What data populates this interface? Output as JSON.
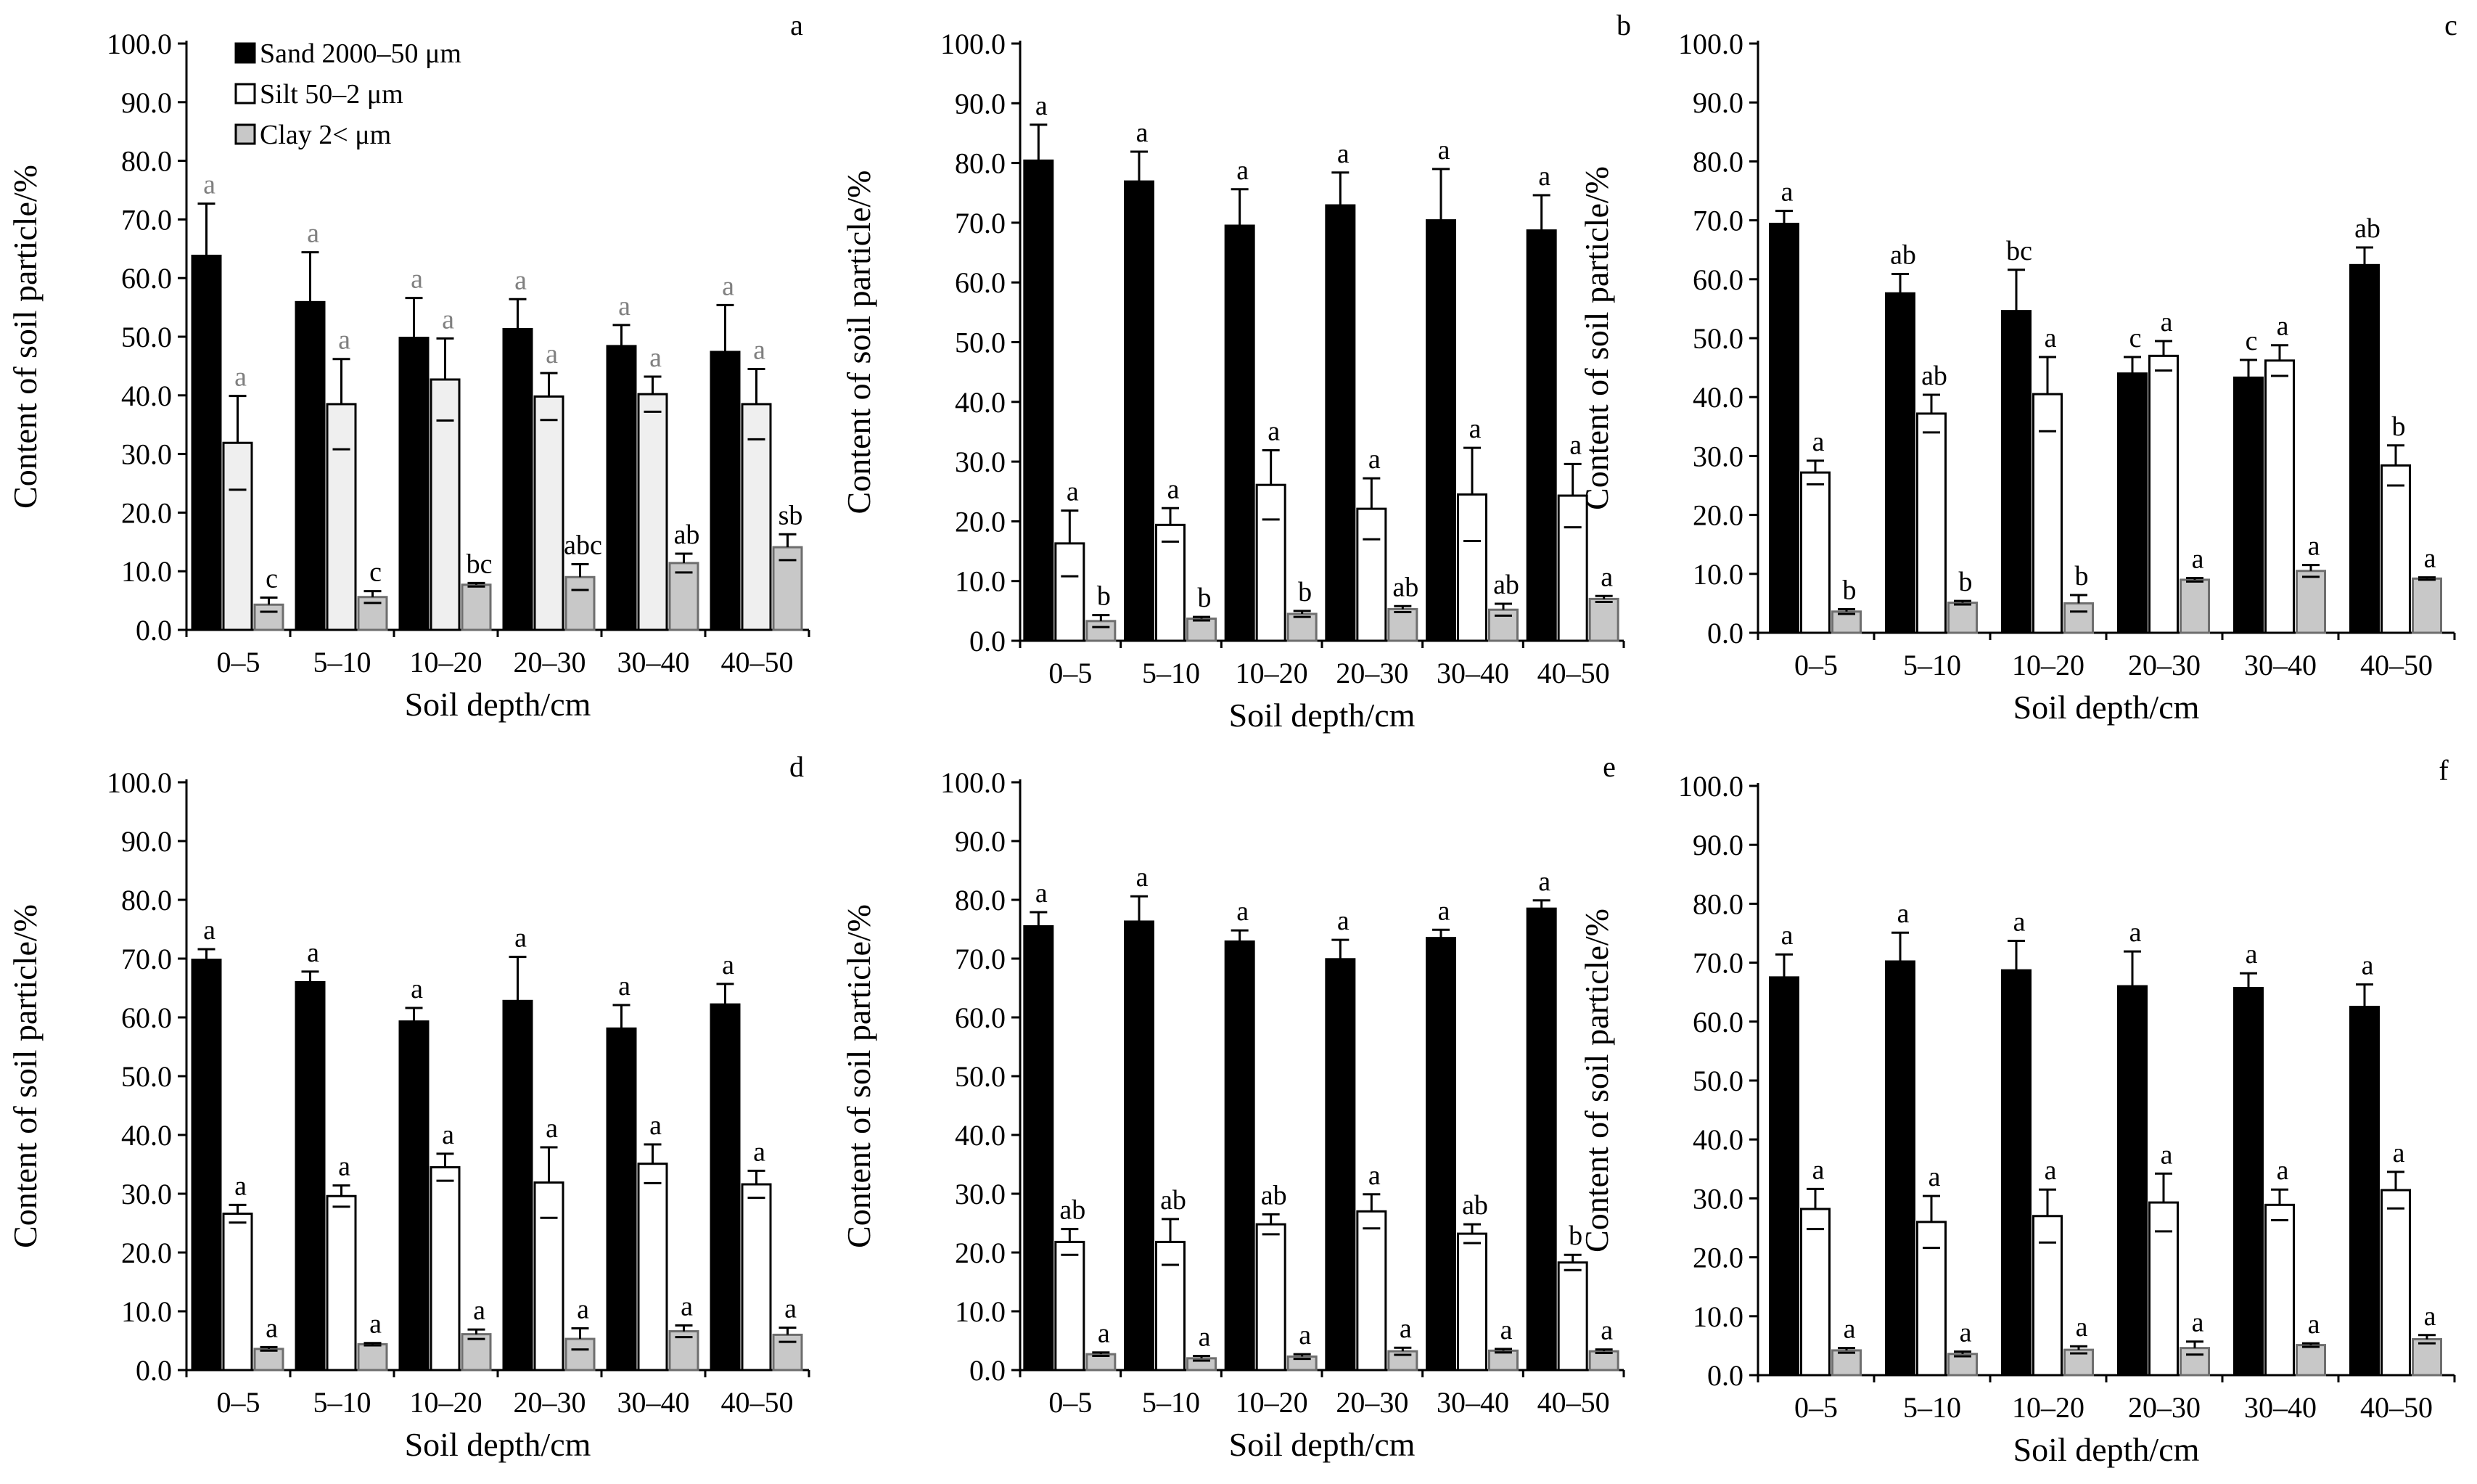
{
  "figure": {
    "legend": [
      {
        "label": "Sand 2000–50 μm",
        "color": "#000000"
      },
      {
        "label": "Silt   50–2 μm",
        "color": "#ffffff"
      },
      {
        "label": "Clay   2< μm",
        "color": "#c8c8c8"
      }
    ]
  },
  "chart_data": [
    {
      "type": "bar",
      "panel": "a",
      "xlabel": "Soil depth/cm",
      "ylabel": "Content of soil particle/%",
      "ylim": [
        0,
        100
      ],
      "yticks": [
        "0.0",
        "10.0",
        "20.0",
        "30.0",
        "40.0",
        "50.0",
        "60.0",
        "70.0",
        "80.0",
        "90.0",
        "100.0"
      ],
      "categories": [
        "0–5",
        "5–10",
        "10–20",
        "20–30",
        "30–40",
        "40–50"
      ],
      "series": [
        {
          "name": "Sand 2000–50 μm",
          "color": "#000000",
          "values": [
            63.8,
            55.9,
            49.8,
            51.3,
            48.4,
            47.4
          ],
          "errors": [
            8.9,
            8.5,
            6.8,
            5.1,
            3.6,
            8.0
          ],
          "labels": [
            "a",
            "a",
            "a",
            "a",
            "a",
            "a"
          ]
        },
        {
          "name": "Silt   50–2 μm",
          "color": "#efefef",
          "values": [
            31.9,
            38.5,
            42.7,
            39.8,
            40.2,
            38.5
          ],
          "errors": [
            8.0,
            7.7,
            7.0,
            4.0,
            3.0,
            6.0
          ],
          "labels": [
            "a",
            "a",
            "a",
            "a",
            "a",
            "a"
          ]
        },
        {
          "name": "Clay   2< μm",
          "color": "#c8c8c8",
          "values": [
            4.3,
            5.6,
            7.7,
            9.0,
            11.4,
            14.1
          ],
          "errors": [
            1.2,
            1.0,
            0.3,
            2.2,
            1.6,
            2.2
          ],
          "labels": [
            "c",
            "c",
            "bc",
            "abc",
            "ab",
            "sb"
          ]
        }
      ]
    },
    {
      "type": "bar",
      "panel": "b",
      "xlabel": "Soil depth/cm",
      "ylabel": "Content of soil particle/%",
      "ylim": [
        0,
        100
      ],
      "yticks": [
        "0.0",
        "10.0",
        "20.0",
        "30.0",
        "40.0",
        "50.0",
        "60.0",
        "70.0",
        "80.0",
        "90.0",
        "100.0"
      ],
      "categories": [
        "0–5",
        "5–10",
        "10–20",
        "20–30",
        "30–40",
        "40–50"
      ],
      "series": [
        {
          "name": "Sand 2000–50 μm",
          "color": "#000000",
          "values": [
            80.4,
            76.9,
            69.5,
            72.9,
            70.4,
            68.7
          ],
          "errors": [
            6.0,
            5.0,
            6.1,
            5.5,
            8.6,
            5.9
          ],
          "labels": [
            "a",
            "a",
            "a",
            "a",
            "a",
            "a"
          ]
        },
        {
          "name": "Silt   50–2 μm",
          "color": "#ffffff",
          "values": [
            16.3,
            19.4,
            26.1,
            22.1,
            24.5,
            24.3
          ],
          "errors": [
            5.5,
            2.8,
            5.8,
            5.1,
            7.8,
            5.3
          ],
          "labels": [
            "a",
            "a",
            "a",
            "a",
            "a",
            "a"
          ]
        },
        {
          "name": "Clay   2< μm",
          "color": "#c8c8c8",
          "values": [
            3.3,
            3.7,
            4.5,
            5.3,
            5.2,
            7.0
          ],
          "errors": [
            1.0,
            0.3,
            0.5,
            0.5,
            1.0,
            0.5
          ],
          "labels": [
            "b",
            "b",
            "b",
            "ab",
            "ab",
            "a"
          ]
        }
      ]
    },
    {
      "type": "bar",
      "panel": "c",
      "xlabel": "Soil depth/cm",
      "ylabel": "Content of soil particle/%",
      "ylim": [
        0,
        100
      ],
      "yticks": [
        "0.0",
        "10.0",
        "20.0",
        "30.0",
        "40.0",
        "50.0",
        "60.0",
        "70.0",
        "80.0",
        "90.0",
        "100.0"
      ],
      "categories": [
        "0–5",
        "5–10",
        "10–20",
        "20–30",
        "30–40",
        "40–50"
      ],
      "series": [
        {
          "name": "Sand 2000–50 μm",
          "color": "#000000",
          "values": [
            69.4,
            57.6,
            54.6,
            44.0,
            43.3,
            62.4
          ],
          "errors": [
            2.2,
            3.3,
            7.0,
            2.8,
            3.0,
            3.0
          ],
          "labels": [
            "a",
            "ab",
            "bc",
            "c",
            "c",
            "ab"
          ]
        },
        {
          "name": "Silt   50–2 μm",
          "color": "#ffffff",
          "values": [
            27.2,
            37.2,
            40.5,
            47.0,
            46.2,
            28.4
          ],
          "errors": [
            2.0,
            3.2,
            6.3,
            2.5,
            2.6,
            3.4
          ],
          "labels": [
            "a",
            "ab",
            "a",
            "a",
            "a",
            "b"
          ]
        },
        {
          "name": "Clay   2< μm",
          "color": "#c8c8c8",
          "values": [
            3.6,
            5.1,
            5.0,
            9.0,
            10.5,
            9.2
          ],
          "errors": [
            0.4,
            0.3,
            1.4,
            0.3,
            1.0,
            0.2
          ],
          "labels": [
            "b",
            "b",
            "b",
            "a",
            "a",
            "a"
          ]
        }
      ]
    },
    {
      "type": "bar",
      "panel": "d",
      "xlabel": "Soil depth/cm",
      "ylabel": "Content of soil particle/%",
      "ylim": [
        0,
        100
      ],
      "yticks": [
        "0.0",
        "10.0",
        "20.0",
        "30.0",
        "40.0",
        "50.0",
        "60.0",
        "70.0",
        "80.0",
        "90.0",
        "100.0"
      ],
      "categories": [
        "0–5",
        "5–10",
        "10–20",
        "20–30",
        "30–40",
        "40–50"
      ],
      "series": [
        {
          "name": "Sand 2000–50 μm",
          "color": "#000000",
          "values": [
            69.8,
            66.0,
            59.3,
            62.8,
            58.1,
            62.2
          ],
          "errors": [
            1.8,
            1.8,
            2.3,
            7.5,
            4.0,
            3.5
          ],
          "labels": [
            "a",
            "a",
            "a",
            "a",
            "a",
            "a"
          ]
        },
        {
          "name": "Silt   50–2 μm",
          "color": "#ffffff",
          "values": [
            26.6,
            29.6,
            34.5,
            31.9,
            35.1,
            31.6
          ],
          "errors": [
            1.5,
            1.8,
            2.3,
            6.0,
            3.3,
            2.3
          ],
          "labels": [
            "a",
            "a",
            "a",
            "a",
            "a",
            "a"
          ]
        },
        {
          "name": "Clay   2< μm",
          "color": "#c8c8c8",
          "values": [
            3.6,
            4.4,
            6.1,
            5.3,
            6.6,
            6.0
          ],
          "errors": [
            0.3,
            0.2,
            0.8,
            1.8,
            1.0,
            1.2
          ],
          "labels": [
            "a",
            "a",
            "a",
            "a",
            "a",
            "a"
          ]
        }
      ]
    },
    {
      "type": "bar",
      "panel": "e",
      "xlabel": "Soil depth/cm",
      "ylabel": "Content of soil particle/%",
      "ylim": [
        0,
        100
      ],
      "yticks": [
        "0.0",
        "10.0",
        "20.0",
        "30.0",
        "40.0",
        "50.0",
        "60.0",
        "70.0",
        "80.0",
        "90.0",
        "100.0"
      ],
      "categories": [
        "0–5",
        "5–10",
        "10–20",
        "20–30",
        "30–40",
        "40–50"
      ],
      "series": [
        {
          "name": "Sand 2000–50 μm",
          "color": "#000000",
          "values": [
            75.5,
            76.3,
            72.9,
            69.9,
            73.5,
            78.5
          ],
          "errors": [
            2.4,
            4.3,
            1.9,
            3.3,
            1.4,
            1.4
          ],
          "labels": [
            "a",
            "a",
            "a",
            "a",
            "a",
            "a"
          ]
        },
        {
          "name": "Silt   50–2 μm",
          "color": "#ffffff",
          "values": [
            21.8,
            21.8,
            24.8,
            27.0,
            23.2,
            18.3
          ],
          "errors": [
            2.2,
            3.9,
            1.7,
            2.9,
            1.6,
            1.3
          ],
          "labels": [
            "ab",
            "ab",
            "ab",
            "a",
            "ab",
            "b"
          ]
        },
        {
          "name": "Clay   2< μm",
          "color": "#c8c8c8",
          "values": [
            2.7,
            2.0,
            2.3,
            3.2,
            3.3,
            3.2
          ],
          "errors": [
            0.3,
            0.4,
            0.4,
            0.6,
            0.3,
            0.3
          ],
          "labels": [
            "a",
            "a",
            "a",
            "a",
            "a",
            "a"
          ]
        }
      ]
    },
    {
      "type": "bar",
      "panel": "f",
      "xlabel": "Soil depth/cm",
      "ylabel": "Content of soil particle/%",
      "ylim": [
        0,
        100
      ],
      "yticks": [
        "0.0",
        "10.0",
        "20.0",
        "30.0",
        "40.0",
        "50.0",
        "60.0",
        "70.0",
        "80.0",
        "90.0",
        "100.0"
      ],
      "categories": [
        "0–5",
        "5–10",
        "10–20",
        "20–30",
        "30–40",
        "40–50"
      ],
      "series": [
        {
          "name": "Sand 2000–50 μm",
          "color": "#000000",
          "values": [
            67.5,
            70.2,
            68.7,
            66.0,
            65.7,
            62.5
          ],
          "errors": [
            3.9,
            4.9,
            5.0,
            5.9,
            2.5,
            3.8
          ],
          "labels": [
            "a",
            "a",
            "a",
            "a",
            "a",
            "a"
          ]
        },
        {
          "name": "Silt   50–2 μm",
          "color": "#ffffff",
          "values": [
            28.2,
            26.0,
            27.0,
            29.3,
            28.9,
            31.4
          ],
          "errors": [
            3.4,
            4.4,
            4.5,
            4.9,
            2.6,
            3.1
          ],
          "labels": [
            "a",
            "a",
            "a",
            "a",
            "a",
            "a"
          ]
        },
        {
          "name": "Clay   2< μm",
          "color": "#c8c8c8",
          "values": [
            4.2,
            3.6,
            4.3,
            4.6,
            5.1,
            6.1
          ],
          "errors": [
            0.4,
            0.4,
            0.6,
            1.1,
            0.3,
            0.7
          ],
          "labels": [
            "a",
            "a",
            "a",
            "a",
            "a",
            "a"
          ]
        }
      ]
    }
  ]
}
